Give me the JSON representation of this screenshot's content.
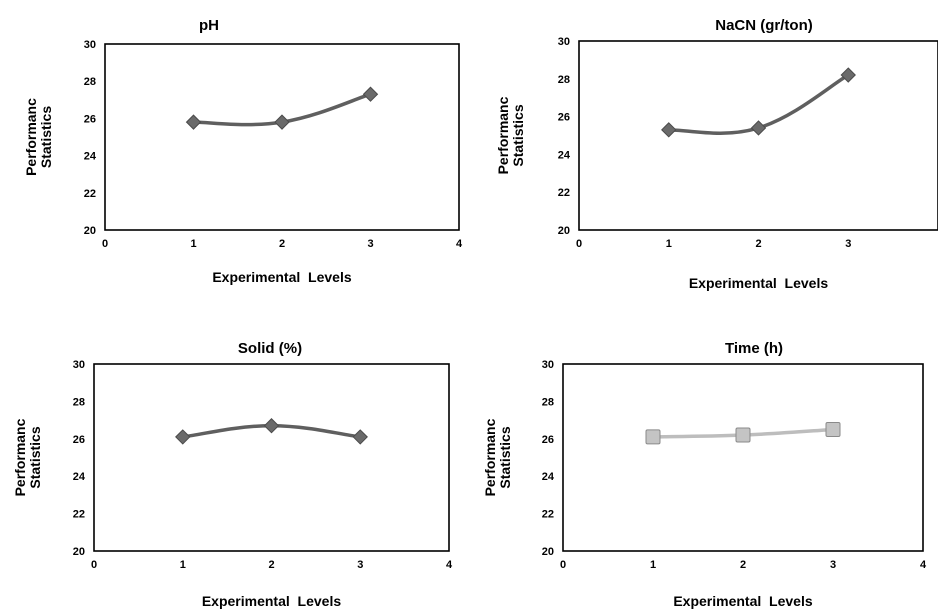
{
  "chart_data": [
    {
      "type": "line",
      "title": "pH",
      "xlabel": "Experimental  Levels",
      "ylabel": [
        "Performanc",
        "Statistics"
      ],
      "xlim": [
        0,
        4
      ],
      "ylim": [
        20,
        30
      ],
      "xticks": [
        "0",
        "1",
        "2",
        "3",
        "4"
      ],
      "yticks": [
        "20",
        "22",
        "24",
        "26",
        "28",
        "30"
      ],
      "grid": false,
      "marker": "diamond",
      "color": "#5f5f5f",
      "series": [
        {
          "x": [
            1,
            2,
            3
          ],
          "y": [
            25.8,
            25.8,
            27.3
          ]
        }
      ]
    },
    {
      "type": "line",
      "title": "NaCN (gr/ton)",
      "xlabel": "Experimental  Levels",
      "ylabel": [
        "Performanc",
        "Statistics"
      ],
      "xlim": [
        0,
        4
      ],
      "ylim": [
        20,
        30
      ],
      "xticks": [
        "0",
        "1",
        "2",
        "3"
      ],
      "yticks": [
        "20",
        "22",
        "24",
        "26",
        "28",
        "30"
      ],
      "grid": false,
      "marker": "diamond",
      "color": "#5f5f5f",
      "series": [
        {
          "x": [
            1,
            2,
            3
          ],
          "y": [
            25.3,
            25.4,
            28.2
          ]
        }
      ]
    },
    {
      "type": "line",
      "title": "Solid (%)",
      "xlabel": "Experimental  Levels",
      "ylabel": [
        "Performanc",
        "Statistics"
      ],
      "xlim": [
        0,
        4
      ],
      "ylim": [
        20,
        30
      ],
      "xticks": [
        "0",
        "1",
        "2",
        "3",
        "4"
      ],
      "yticks": [
        "20",
        "22",
        "24",
        "26",
        "28",
        "30"
      ],
      "grid": false,
      "marker": "diamond",
      "color": "#5f5f5f",
      "series": [
        {
          "x": [
            1,
            2,
            3
          ],
          "y": [
            26.1,
            26.7,
            26.1
          ]
        }
      ]
    },
    {
      "type": "line",
      "title": "Time (h)",
      "xlabel": "Experimental  Levels",
      "ylabel": [
        "Performanc",
        "Statistics"
      ],
      "xlim": [
        0,
        4
      ],
      "ylim": [
        20,
        30
      ],
      "xticks": [
        "0",
        "1",
        "2",
        "3",
        "4"
      ],
      "yticks": [
        "20",
        "22",
        "24",
        "26",
        "28",
        "30"
      ],
      "grid": false,
      "marker": "square",
      "color": "#bdbdbd",
      "series": [
        {
          "x": [
            1,
            2,
            3
          ],
          "y": [
            26.1,
            26.2,
            26.5
          ]
        }
      ]
    }
  ]
}
